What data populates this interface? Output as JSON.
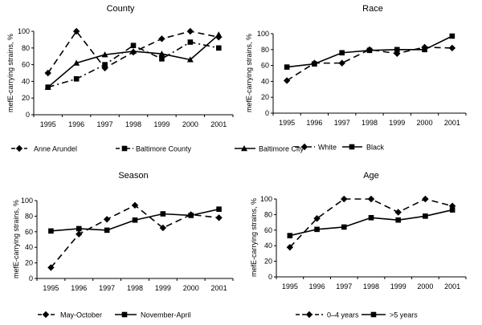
{
  "chart_data": [
    {
      "type": "line",
      "title": "County",
      "ylabel": "mefE-carrying strains, %",
      "xlabel": "",
      "ylim": [
        0,
        100
      ],
      "yticks": [
        0,
        20,
        40,
        60,
        80,
        100
      ],
      "categories": [
        "1995",
        "1996",
        "1997",
        "1998",
        "1999",
        "2000",
        "2001"
      ],
      "grid": false,
      "legend_position": "bottom",
      "series": [
        {
          "name": "Anne Arundel",
          "marker": "diamond",
          "dash": "long",
          "values": [
            50,
            100,
            56,
            75,
            91,
            100,
            93
          ]
        },
        {
          "name": "Baltimore County",
          "marker": "square",
          "dash": "dashdot",
          "values": [
            33,
            43,
            60,
            83,
            67,
            87,
            80
          ]
        },
        {
          "name": "Baltimore City",
          "marker": "triangle",
          "dash": "solid",
          "values": [
            33,
            62,
            72,
            76,
            73,
            66,
            96
          ]
        }
      ]
    },
    {
      "type": "line",
      "title": "Race",
      "ylabel": "mefE-carrying strains, %",
      "xlabel": "",
      "ylim": [
        0,
        100
      ],
      "yticks": [
        0,
        20,
        40,
        60,
        80,
        100
      ],
      "categories": [
        "1995",
        "1996",
        "1997",
        "1998",
        "1999",
        "2000",
        "2001"
      ],
      "grid": false,
      "legend_position": "bottom",
      "series": [
        {
          "name": "White",
          "marker": "diamond",
          "dash": "long",
          "values": [
            41,
            63,
            63,
            80,
            75,
            83,
            82
          ]
        },
        {
          "name": "Black",
          "marker": "square",
          "dash": "solid",
          "values": [
            58,
            62,
            76,
            79,
            80,
            80,
            97
          ]
        }
      ]
    },
    {
      "type": "line",
      "title": "Season",
      "ylabel": "mefE-carrying strains, %",
      "xlabel": "",
      "ylim": [
        0,
        100
      ],
      "yticks": [
        0,
        20,
        40,
        60,
        80,
        100
      ],
      "categories": [
        "1995",
        "1996",
        "1997",
        "1998",
        "1999",
        "2000",
        "2001"
      ],
      "grid": false,
      "legend_position": "bottom",
      "series": [
        {
          "name": "May-October",
          "marker": "diamond",
          "dash": "long",
          "values": [
            14,
            57,
            76,
            94,
            65,
            82,
            78
          ]
        },
        {
          "name": "November-April",
          "marker": "square",
          "dash": "solid",
          "values": [
            61,
            64,
            62,
            75,
            83,
            81,
            89
          ]
        }
      ]
    },
    {
      "type": "line",
      "title": "Age",
      "ylabel": "mefE-carrying strains, %",
      "xlabel": "",
      "ylim": [
        0,
        100
      ],
      "yticks": [
        0,
        20,
        40,
        60,
        80,
        100
      ],
      "categories": [
        "1995",
        "1996",
        "1997",
        "1998",
        "1999",
        "2000",
        "2001"
      ],
      "grid": false,
      "legend_position": "bottom",
      "series": [
        {
          "name": "0–4 years",
          "marker": "diamond",
          "dash": "long",
          "values": [
            38,
            75,
            100,
            100,
            83,
            100,
            91
          ]
        },
        {
          "name": ">5 years",
          "marker": "square",
          "dash": "solid",
          "values": [
            53,
            61,
            64,
            76,
            73,
            78,
            86
          ]
        }
      ]
    }
  ]
}
